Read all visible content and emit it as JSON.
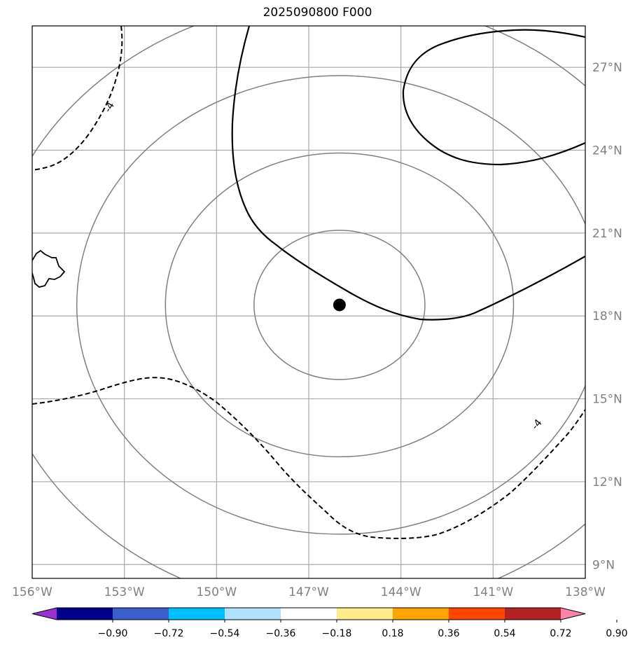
{
  "title": "2025090800 F000",
  "map": {
    "lon_range": [
      -156,
      -138
    ],
    "lat_range": [
      8.5,
      28.5
    ],
    "lon_ticks": [
      {
        "value": -156,
        "label": "156°W"
      },
      {
        "value": -153,
        "label": "153°W"
      },
      {
        "value": -150,
        "label": "150°W"
      },
      {
        "value": -147,
        "label": "147°W"
      },
      {
        "value": -144,
        "label": "144°W"
      },
      {
        "value": -141,
        "label": "141°W"
      },
      {
        "value": -138,
        "label": "138°W"
      }
    ],
    "lat_ticks": [
      {
        "value": 9,
        "label": "9°N"
      },
      {
        "value": 12,
        "label": "12°N"
      },
      {
        "value": 15,
        "label": "15°N"
      },
      {
        "value": 18,
        "label": "18°N"
      },
      {
        "value": 21,
        "label": "21°N"
      },
      {
        "value": 24,
        "label": "24°N"
      },
      {
        "value": 27,
        "label": "27°N"
      }
    ],
    "storm_center": {
      "lon": -146.0,
      "lat": 18.4
    },
    "range_rings_deg": [
      2.7,
      5.5,
      8.3,
      11.1
    ],
    "contour_labels": [
      {
        "text": "-4",
        "lon": -153.4,
        "lat": 25.5,
        "rotation": -60
      },
      {
        "text": "-4",
        "lon": -139.5,
        "lat": 14.0,
        "rotation": -50
      }
    ]
  },
  "colorbar": {
    "colors": [
      "#9932cc",
      "#00008b",
      "#3a5fcd",
      "#00bfff",
      "#b0e2ff",
      "#ffffff",
      "#ffec8b",
      "#ffa500",
      "#ff4500",
      "#b22222",
      "#ff82ab"
    ],
    "ticks": [
      "−0.90",
      "−0.72",
      "−0.54",
      "−0.36",
      "−0.18",
      "0.18",
      "0.36",
      "0.54",
      "0.72",
      "0.90"
    ]
  }
}
